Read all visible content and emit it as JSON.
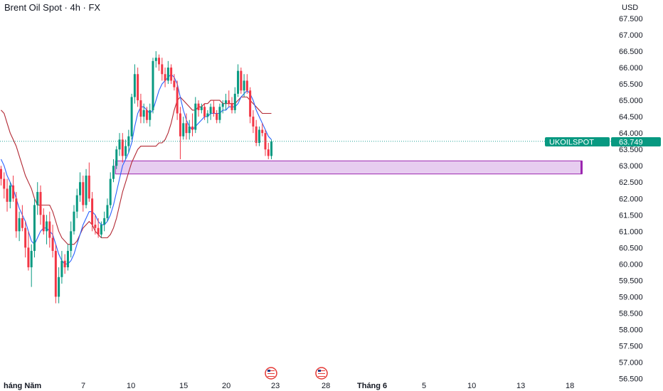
{
  "header": {
    "title": "Brent Oil Spot · 4h · FX",
    "currency": "USD"
  },
  "price_label": {
    "symbol": "UKOILSPOT",
    "value": "63.749"
  },
  "colors": {
    "up": "#089981",
    "down": "#f23645",
    "fast_line": "#2962ff",
    "slow_line": "#b22833",
    "zone_fill": "#e7cdf0",
    "zone_stroke": "#9c27b0",
    "price_tag": "#089981",
    "last_line": "#26a69a",
    "flag": "#e53935"
  },
  "chart_data": {
    "type": "candlestick",
    "title": "Brent Oil Spot · 4h · FX",
    "y_axis": {
      "ticks": [
        "67.500",
        "67.000",
        "66.500",
        "66.000",
        "65.500",
        "65.000",
        "64.500",
        "64.000",
        "63.500",
        "63.000",
        "62.500",
        "62.000",
        "61.500",
        "61.000",
        "60.500",
        "60.000",
        "59.500",
        "59.000",
        "58.500",
        "58.000",
        "57.500",
        "57.000",
        "56.500"
      ],
      "min": 56.5,
      "max": 67.5
    },
    "x_axis": {
      "ticks": [
        {
          "label": "háng Năm",
          "bold": true
        },
        {
          "label": "7",
          "bold": false
        },
        {
          "label": "10",
          "bold": false
        },
        {
          "label": "15",
          "bold": false
        },
        {
          "label": "20",
          "bold": false
        },
        {
          "label": "23",
          "bold": false
        },
        {
          "label": "28",
          "bold": false
        },
        {
          "label": "Tháng 6",
          "bold": true
        },
        {
          "label": "5",
          "bold": false
        },
        {
          "label": "10",
          "bold": false
        },
        {
          "label": "13",
          "bold": false
        },
        {
          "label": "18",
          "bold": false
        }
      ]
    },
    "last_price": 63.749,
    "zone": {
      "low": 62.75,
      "high": 63.15
    },
    "candles": [
      [
        62.9,
        63.0,
        62.4,
        62.6
      ],
      [
        62.6,
        62.8,
        62.0,
        62.3
      ],
      [
        62.3,
        62.6,
        61.6,
        61.9
      ],
      [
        61.9,
        62.5,
        61.7,
        62.4
      ],
      [
        62.4,
        62.7,
        61.9,
        62.0
      ],
      [
        62.0,
        62.2,
        60.8,
        61.0
      ],
      [
        61.0,
        61.6,
        60.7,
        61.4
      ],
      [
        61.4,
        61.8,
        61.0,
        61.1
      ],
      [
        61.1,
        61.3,
        60.2,
        60.5
      ],
      [
        60.5,
        61.0,
        59.8,
        59.9
      ],
      [
        59.9,
        60.6,
        59.3,
        60.4
      ],
      [
        60.4,
        62.0,
        60.2,
        61.8
      ],
      [
        61.8,
        62.5,
        61.5,
        62.2
      ],
      [
        62.2,
        62.4,
        61.2,
        61.5
      ],
      [
        61.5,
        61.7,
        60.9,
        61.0
      ],
      [
        61.0,
        61.5,
        60.6,
        61.3
      ],
      [
        61.3,
        61.6,
        60.5,
        60.8
      ],
      [
        60.8,
        61.2,
        60.2,
        60.4
      ],
      [
        60.4,
        60.6,
        58.8,
        59.0
      ],
      [
        59.0,
        59.9,
        58.8,
        59.6
      ],
      [
        59.6,
        60.4,
        59.4,
        60.1
      ],
      [
        60.1,
        60.3,
        59.7,
        59.9
      ],
      [
        59.9,
        60.6,
        59.8,
        60.4
      ],
      [
        60.4,
        61.3,
        60.2,
        61.0
      ],
      [
        61.0,
        61.8,
        60.9,
        61.6
      ],
      [
        61.6,
        62.3,
        61.4,
        62.1
      ],
      [
        62.1,
        62.8,
        61.9,
        62.5
      ],
      [
        62.5,
        62.7,
        61.6,
        61.8
      ],
      [
        61.8,
        62.9,
        61.7,
        62.7
      ],
      [
        62.7,
        63.1,
        61.9,
        62.0
      ],
      [
        62.0,
        62.2,
        61.0,
        61.2
      ],
      [
        61.2,
        61.5,
        60.9,
        61.1
      ],
      [
        61.1,
        61.4,
        60.8,
        60.9
      ],
      [
        60.9,
        61.3,
        60.8,
        61.2
      ],
      [
        61.2,
        61.6,
        61.0,
        61.4
      ],
      [
        61.4,
        62.0,
        61.3,
        61.8
      ],
      [
        61.8,
        62.8,
        61.7,
        62.6
      ],
      [
        62.6,
        63.2,
        62.5,
        63.0
      ],
      [
        63.0,
        63.6,
        62.9,
        63.5
      ],
      [
        63.5,
        64.0,
        63.3,
        63.8
      ],
      [
        63.8,
        64.0,
        63.1,
        63.3
      ],
      [
        63.3,
        63.8,
        63.2,
        63.6
      ],
      [
        63.6,
        64.1,
        63.4,
        63.9
      ],
      [
        63.9,
        65.2,
        63.8,
        65.1
      ],
      [
        65.1,
        66.1,
        64.9,
        65.8
      ],
      [
        65.8,
        66.0,
        64.8,
        65.0
      ],
      [
        65.0,
        65.2,
        64.3,
        64.5
      ],
      [
        64.5,
        64.9,
        64.3,
        64.7
      ],
      [
        64.7,
        64.8,
        64.3,
        64.4
      ],
      [
        64.4,
        64.9,
        64.2,
        64.7
      ],
      [
        64.7,
        66.3,
        64.6,
        66.2
      ],
      [
        66.2,
        66.5,
        66.0,
        66.3
      ],
      [
        66.3,
        66.4,
        65.9,
        66.1
      ],
      [
        66.1,
        66.3,
        65.6,
        65.8
      ],
      [
        65.8,
        66.0,
        65.4,
        65.6
      ],
      [
        65.6,
        66.2,
        65.5,
        66.0
      ],
      [
        66.0,
        66.1,
        65.5,
        65.6
      ],
      [
        65.6,
        65.8,
        65.3,
        65.4
      ],
      [
        65.4,
        65.6,
        64.4,
        64.6
      ],
      [
        64.6,
        64.8,
        63.2,
        63.9
      ],
      [
        63.9,
        64.5,
        63.8,
        64.3
      ],
      [
        64.3,
        64.6,
        63.8,
        64.0
      ],
      [
        64.0,
        64.4,
        63.8,
        64.2
      ],
      [
        64.2,
        64.6,
        63.9,
        64.1
      ],
      [
        64.1,
        65.1,
        64.0,
        64.9
      ],
      [
        64.9,
        65.0,
        64.5,
        64.7
      ],
      [
        64.7,
        64.9,
        64.6,
        64.8
      ],
      [
        64.8,
        64.9,
        64.4,
        64.5
      ],
      [
        64.5,
        64.7,
        64.3,
        64.6
      ],
      [
        64.6,
        64.9,
        64.4,
        64.8
      ],
      [
        64.8,
        65.0,
        64.5,
        64.6
      ],
      [
        64.6,
        64.7,
        64.3,
        64.4
      ],
      [
        64.4,
        64.9,
        64.3,
        64.8
      ],
      [
        64.8,
        65.0,
        64.6,
        64.9
      ],
      [
        64.9,
        65.2,
        64.7,
        65.0
      ],
      [
        65.0,
        65.3,
        64.8,
        64.9
      ],
      [
        64.9,
        65.1,
        64.6,
        64.7
      ],
      [
        64.7,
        65.4,
        64.6,
        65.2
      ],
      [
        65.2,
        66.1,
        65.1,
        65.9
      ],
      [
        65.9,
        66.0,
        65.2,
        65.3
      ],
      [
        65.3,
        65.8,
        65.1,
        65.6
      ],
      [
        65.6,
        65.8,
        65.2,
        65.3
      ],
      [
        65.3,
        65.4,
        64.3,
        64.5
      ],
      [
        64.5,
        64.7,
        64.0,
        64.2
      ],
      [
        64.2,
        64.4,
        63.6,
        63.7
      ],
      [
        63.7,
        64.2,
        63.6,
        64.1
      ],
      [
        64.1,
        64.3,
        63.9,
        64.0
      ],
      [
        64.0,
        64.1,
        63.3,
        63.5
      ],
      [
        63.5,
        63.7,
        63.2,
        63.3
      ],
      [
        63.3,
        63.8,
        63.2,
        63.75
      ]
    ],
    "fast_line": [
      63.2,
      63.0,
      62.7,
      62.5,
      62.3,
      62.0,
      61.7,
      61.5,
      61.3,
      61.0,
      60.7,
      60.6,
      60.8,
      61.0,
      61.1,
      61.1,
      61.0,
      60.9,
      60.6,
      60.3,
      60.1,
      60.0,
      60.0,
      60.1,
      60.3,
      60.6,
      60.9,
      61.2,
      61.4,
      61.6,
      61.6,
      61.5,
      61.3,
      61.2,
      61.2,
      61.3,
      61.5,
      61.8,
      62.2,
      62.6,
      63.0,
      63.2,
      63.4,
      63.7,
      64.2,
      64.6,
      64.8,
      64.8,
      64.7,
      64.6,
      64.7,
      65.0,
      65.3,
      65.5,
      65.6,
      65.7,
      65.8,
      65.7,
      65.5,
      65.1,
      64.7,
      64.4,
      64.2,
      64.1,
      64.2,
      64.3,
      64.4,
      64.5,
      64.5,
      64.6,
      64.6,
      64.6,
      64.6,
      64.7,
      64.7,
      64.8,
      64.8,
      64.8,
      64.9,
      65.1,
      65.2,
      65.3,
      65.2,
      65.0,
      64.7,
      64.5,
      64.3,
      64.1,
      63.9,
      63.8
    ],
    "slow_line": [
      64.7,
      64.6,
      64.3,
      64.0,
      63.8,
      63.6,
      63.3,
      63.0,
      62.7,
      62.5,
      62.3,
      62.0,
      61.8,
      61.8,
      61.8,
      61.8,
      61.8,
      61.6,
      61.3,
      61.0,
      60.8,
      60.7,
      60.6,
      60.6,
      60.6,
      60.7,
      60.9,
      61.1,
      61.2,
      61.3,
      61.2,
      61.0,
      60.9,
      60.8,
      60.8,
      60.8,
      60.9,
      61.1,
      61.4,
      61.8,
      62.2,
      62.5,
      62.8,
      63.1,
      63.3,
      63.5,
      63.6,
      63.6,
      63.6,
      63.6,
      63.6,
      63.6,
      63.7,
      63.7,
      63.8,
      64.0,
      64.3,
      64.7,
      65.0,
      65.1,
      65.0,
      64.9,
      64.8,
      64.7,
      64.7,
      64.8,
      64.8,
      64.9,
      64.9,
      65.0,
      65.0,
      65.0,
      65.0,
      64.9,
      64.9,
      64.9,
      64.9,
      64.9,
      65.0,
      65.1,
      65.1,
      65.1,
      65.0,
      64.9,
      64.8,
      64.7,
      64.6,
      64.6,
      64.6,
      64.6
    ]
  }
}
